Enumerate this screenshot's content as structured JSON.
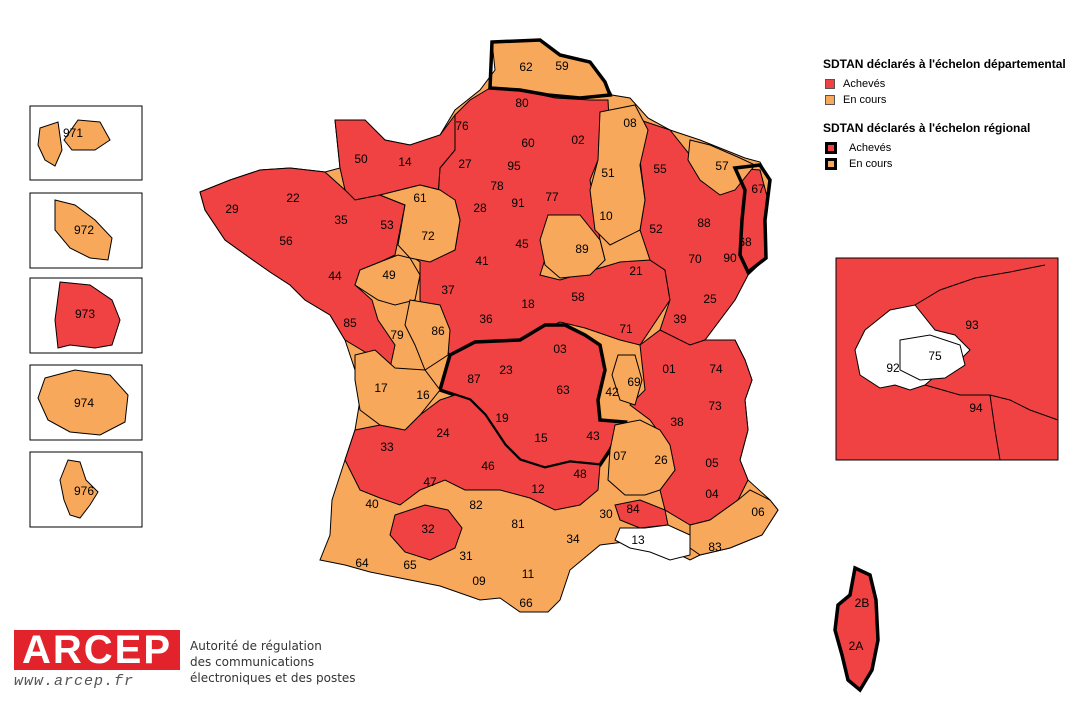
{
  "colors": {
    "achieved": "#f04242",
    "in_progress": "#f8a85a",
    "not_declared": "#ffffff",
    "border": "#000000"
  },
  "legend": {
    "departmental_title": "SDTAN déclarés à l'échelon départemental",
    "departmental_items": [
      "Achevés",
      "En cours"
    ],
    "regional_title": "SDTAN déclarés à l'échelon régional",
    "regional_items": [
      "Achevés",
      "En cours"
    ]
  },
  "overseas": [
    {
      "code": "971",
      "status": "in_progress"
    },
    {
      "code": "972",
      "status": "in_progress"
    },
    {
      "code": "973",
      "status": "achieved"
    },
    {
      "code": "974",
      "status": "in_progress"
    },
    {
      "code": "976",
      "status": "in_progress"
    }
  ],
  "paris_inset": [
    {
      "code": "93",
      "status": "achieved"
    },
    {
      "code": "75",
      "status": "not_declared"
    },
    {
      "code": "92",
      "status": "not_declared"
    },
    {
      "code": "94",
      "status": "achieved"
    }
  ],
  "departments": [
    {
      "code": "62",
      "status": "in_progress"
    },
    {
      "code": "59",
      "status": "in_progress"
    },
    {
      "code": "80",
      "status": "achieved"
    },
    {
      "code": "08",
      "status": "in_progress"
    },
    {
      "code": "76",
      "status": "achieved"
    },
    {
      "code": "60",
      "status": "achieved"
    },
    {
      "code": "02",
      "status": "achieved"
    },
    {
      "code": "50",
      "status": "achieved"
    },
    {
      "code": "14",
      "status": "achieved"
    },
    {
      "code": "27",
      "status": "achieved"
    },
    {
      "code": "95",
      "status": "achieved"
    },
    {
      "code": "55",
      "status": "achieved"
    },
    {
      "code": "57",
      "status": "in_progress"
    },
    {
      "code": "51",
      "status": "in_progress"
    },
    {
      "code": "78",
      "status": "achieved"
    },
    {
      "code": "67",
      "status": "achieved"
    },
    {
      "code": "29",
      "status": "achieved"
    },
    {
      "code": "22",
      "status": "achieved"
    },
    {
      "code": "61",
      "status": "in_progress"
    },
    {
      "code": "28",
      "status": "achieved"
    },
    {
      "code": "91",
      "status": "achieved"
    },
    {
      "code": "77",
      "status": "achieved"
    },
    {
      "code": "10",
      "status": "in_progress"
    },
    {
      "code": "88",
      "status": "achieved"
    },
    {
      "code": "35",
      "status": "achieved"
    },
    {
      "code": "53",
      "status": "achieved"
    },
    {
      "code": "72",
      "status": "in_progress"
    },
    {
      "code": "52",
      "status": "achieved"
    },
    {
      "code": "68",
      "status": "achieved"
    },
    {
      "code": "56",
      "status": "achieved"
    },
    {
      "code": "45",
      "status": "achieved"
    },
    {
      "code": "89",
      "status": "in_progress"
    },
    {
      "code": "49",
      "status": "in_progress"
    },
    {
      "code": "41",
      "status": "achieved"
    },
    {
      "code": "21",
      "status": "achieved"
    },
    {
      "code": "70",
      "status": "achieved"
    },
    {
      "code": "44",
      "status": "achieved"
    },
    {
      "code": "90",
      "status": "achieved"
    },
    {
      "code": "37",
      "status": "achieved"
    },
    {
      "code": "58",
      "status": "achieved"
    },
    {
      "code": "25",
      "status": "achieved"
    },
    {
      "code": "18",
      "status": "achieved"
    },
    {
      "code": "85",
      "status": "achieved"
    },
    {
      "code": "79",
      "status": "achieved"
    },
    {
      "code": "86",
      "status": "in_progress"
    },
    {
      "code": "36",
      "status": "achieved"
    },
    {
      "code": "71",
      "status": "achieved"
    },
    {
      "code": "39",
      "status": "achieved"
    },
    {
      "code": "03",
      "status": "achieved"
    },
    {
      "code": "87",
      "status": "achieved"
    },
    {
      "code": "23",
      "status": "achieved"
    },
    {
      "code": "69",
      "status": "in_progress"
    },
    {
      "code": "01",
      "status": "achieved"
    },
    {
      "code": "74",
      "status": "achieved"
    },
    {
      "code": "17",
      "status": "in_progress"
    },
    {
      "code": "16",
      "status": "in_progress"
    },
    {
      "code": "63",
      "status": "achieved"
    },
    {
      "code": "42",
      "status": "achieved"
    },
    {
      "code": "73",
      "status": "achieved"
    },
    {
      "code": "19",
      "status": "achieved"
    },
    {
      "code": "38",
      "status": "achieved"
    },
    {
      "code": "24",
      "status": "achieved"
    },
    {
      "code": "15",
      "status": "achieved"
    },
    {
      "code": "43",
      "status": "achieved"
    },
    {
      "code": "33",
      "status": "achieved"
    },
    {
      "code": "07",
      "status": "in_progress"
    },
    {
      "code": "26",
      "status": "in_progress"
    },
    {
      "code": "05",
      "status": "achieved"
    },
    {
      "code": "46",
      "status": "achieved"
    },
    {
      "code": "48",
      "status": "achieved"
    },
    {
      "code": "47",
      "status": "achieved"
    },
    {
      "code": "12",
      "status": "achieved"
    },
    {
      "code": "04",
      "status": "achieved"
    },
    {
      "code": "40",
      "status": "in_progress"
    },
    {
      "code": "82",
      "status": "in_progress"
    },
    {
      "code": "81",
      "status": "in_progress"
    },
    {
      "code": "30",
      "status": "in_progress"
    },
    {
      "code": "84",
      "status": "achieved"
    },
    {
      "code": "06",
      "status": "in_progress"
    },
    {
      "code": "32",
      "status": "achieved"
    },
    {
      "code": "34",
      "status": "in_progress"
    },
    {
      "code": "13",
      "status": "not_declared"
    },
    {
      "code": "83",
      "status": "in_progress"
    },
    {
      "code": "64",
      "status": "in_progress"
    },
    {
      "code": "65",
      "status": "in_progress"
    },
    {
      "code": "31",
      "status": "in_progress"
    },
    {
      "code": "09",
      "status": "in_progress"
    },
    {
      "code": "11",
      "status": "in_progress"
    },
    {
      "code": "66",
      "status": "in_progress"
    },
    {
      "code": "2B",
      "status": "achieved"
    },
    {
      "code": "2A",
      "status": "achieved"
    }
  ],
  "logo": {
    "name": "ARCEP",
    "url": "www.arcep.fr",
    "tagline": [
      "Autorité de régulation",
      "des communications",
      "électroniques et des postes"
    ]
  }
}
